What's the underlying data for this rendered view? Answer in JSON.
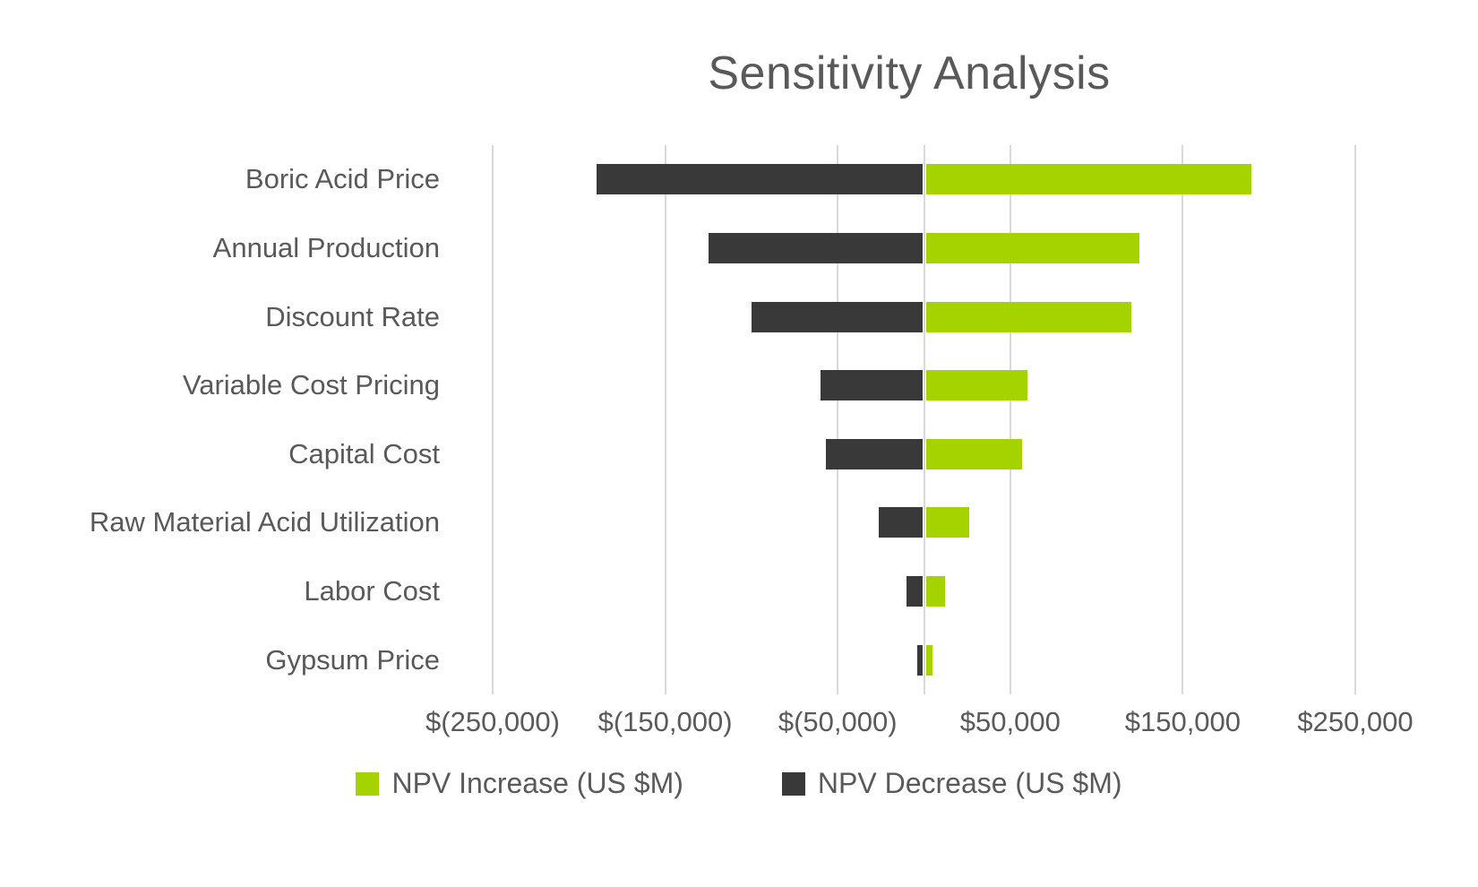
{
  "chart_data": {
    "type": "bar",
    "subtype": "tornado-horizontal",
    "title": "Sensitivity Analysis",
    "categories": [
      "Boric Acid Price",
      "Annual Production",
      "Discount Rate",
      "Variable Cost Pricing",
      "Capital Cost",
      "Raw Material Acid Utilization",
      "Labor Cost",
      "Gypsum Price"
    ],
    "series": [
      {
        "name": "NPV Increase (US $M)",
        "color": "#a5d300",
        "values": [
          190000,
          125000,
          120000,
          60000,
          57000,
          26000,
          12000,
          5000
        ]
      },
      {
        "name": "NPV Decrease (US $M)",
        "color": "#393939",
        "values": [
          -190000,
          -125000,
          -100000,
          -60000,
          -57000,
          -26000,
          -10000,
          -4000
        ]
      }
    ],
    "x_axis": {
      "min": -250000,
      "max": 250000,
      "tick_step": 100000,
      "tick_values": [
        -250000,
        -150000,
        -50000,
        50000,
        150000,
        250000
      ],
      "tick_labels": [
        "$(250,000)",
        "$(150,000)",
        "$(50,000)",
        "$50,000",
        "$150,000",
        "$250,000"
      ]
    },
    "grid": true,
    "legend_position": "bottom",
    "colors": {
      "text": "#595959",
      "gridline": "#d9d9d9",
      "background": "#ffffff"
    }
  }
}
